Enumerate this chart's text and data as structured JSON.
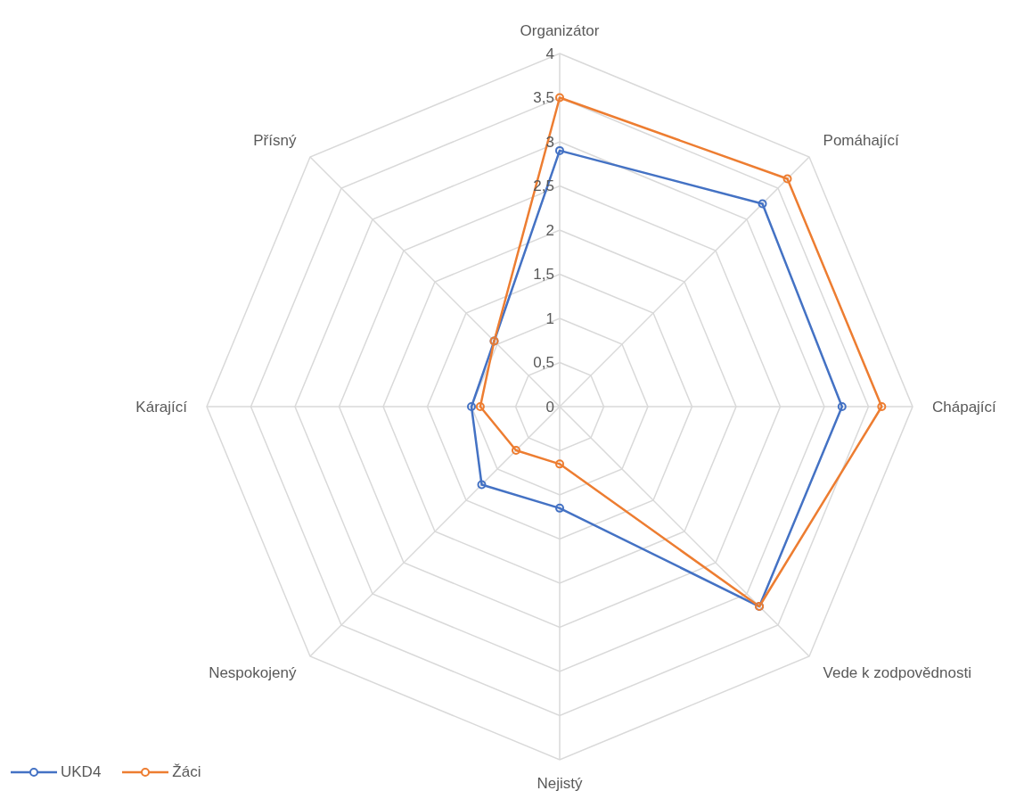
{
  "chart_data": {
    "type": "radar",
    "categories": [
      "Organizátor",
      "Pomáhající",
      "Chápající",
      "Vede k zodpovědnosti",
      "Nejistý",
      "Nespokojený",
      "Kárající",
      "Přísný"
    ],
    "series": [
      {
        "name": "UKD4",
        "color": "#4472c4",
        "values": [
          2.9,
          3.25,
          3.2,
          3.2,
          1.15,
          1.25,
          1.0,
          1.05
        ]
      },
      {
        "name": "Žáci",
        "color": "#ed7d31",
        "values": [
          3.5,
          3.65,
          3.65,
          3.2,
          0.65,
          0.7,
          0.9,
          1.05
        ]
      }
    ],
    "ylim": [
      0,
      4
    ],
    "yticks": [
      0,
      {
        "value": 0.5,
        "label": "0,5"
      },
      1,
      {
        "value": 1.5,
        "label": "1,5"
      },
      2,
      {
        "value": 2.5,
        "label": "2,5"
      },
      3,
      {
        "value": 3.5,
        "label": "3,5"
      },
      4
    ],
    "grid": true,
    "legend": "bottom left",
    "marker": "circle"
  }
}
